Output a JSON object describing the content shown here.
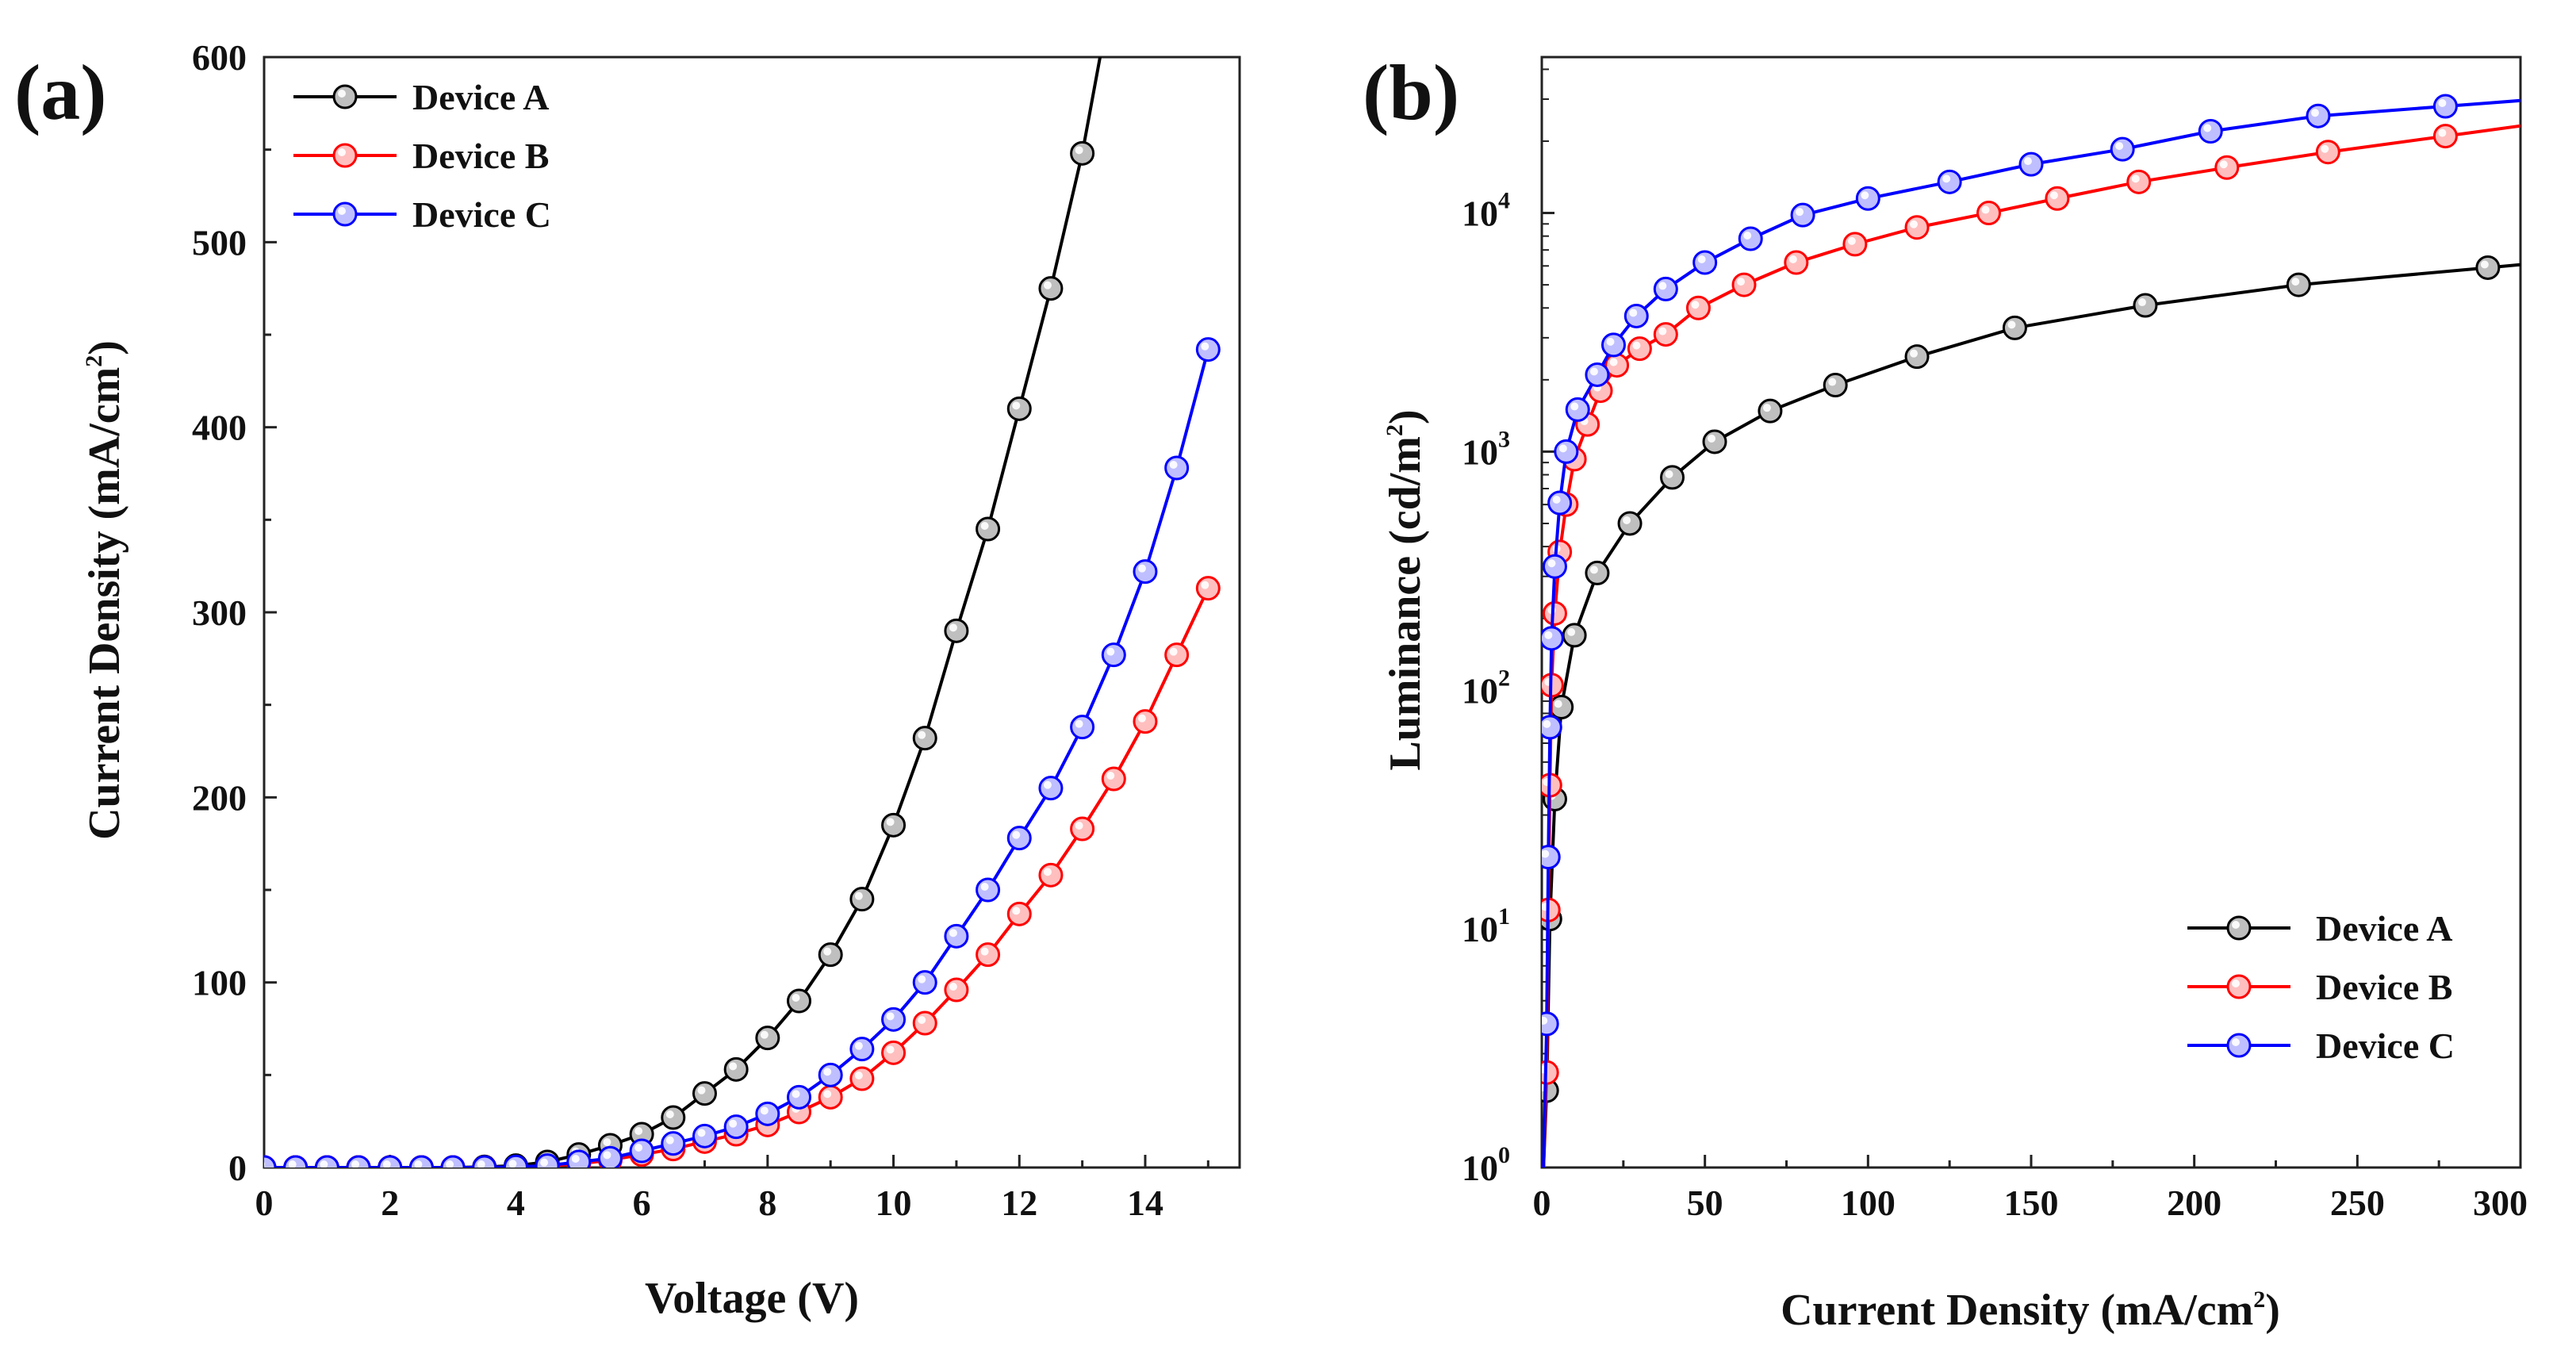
{
  "chart_data": [
    {
      "panel_label": "(a)",
      "type": "line",
      "xlabel": "Voltage (V)",
      "ylabel_main": "Current Density (mA/cm",
      "ylabel_exp": "2",
      "ylabel_tail": ")",
      "xlim": [
        0,
        15.5
      ],
      "ylim": [
        0,
        600
      ],
      "x_ticks": [
        0,
        2,
        4,
        6,
        8,
        10,
        12,
        14
      ],
      "y_ticks": [
        0,
        100,
        200,
        300,
        400,
        500,
        600
      ],
      "legend_position": "top-left",
      "x": [
        0,
        0.5,
        1,
        1.5,
        2,
        2.5,
        3,
        3.5,
        4,
        4.5,
        5,
        5.5,
        6,
        6.5,
        7,
        7.5,
        8,
        8.5,
        9,
        9.5,
        10,
        10.5,
        11,
        11.5,
        12,
        12.5,
        13,
        13.5,
        14,
        14.5,
        15
      ],
      "series": [
        {
          "name": "Device A",
          "color": "#000000",
          "values": [
            0,
            0,
            0,
            0,
            0,
            0,
            0,
            0.3,
            1,
            3,
            7,
            12,
            18,
            27,
            40,
            53,
            70,
            90,
            115,
            145,
            185,
            232,
            290,
            345,
            410,
            475,
            548,
            640,
            null,
            null,
            null
          ]
        },
        {
          "name": "Device B",
          "color": "#ff0000",
          "values": [
            0,
            0,
            0,
            0,
            0,
            0,
            0,
            0,
            0.2,
            0.8,
            2,
            4,
            7,
            10,
            14,
            18,
            23,
            30,
            38,
            48,
            62,
            78,
            96,
            115,
            137,
            158,
            183,
            210,
            241,
            277,
            313
          ]
        },
        {
          "name": "Device C",
          "color": "#0000ff",
          "values": [
            0,
            0,
            0,
            0,
            0,
            0,
            0,
            0,
            0.3,
            1,
            3,
            5,
            9,
            13,
            17,
            22,
            29,
            38,
            50,
            64,
            80,
            100,
            125,
            150,
            178,
            205,
            238,
            277,
            322,
            378,
            442
          ]
        }
      ]
    },
    {
      "panel_label": "(b)",
      "type": "line",
      "xlabel_main": "Current Density (mA/cm",
      "xlabel_exp": "2",
      "xlabel_tail": ")",
      "ylabel_main": "Luminance (cd/m",
      "ylabel_exp": "2",
      "ylabel_tail": ")",
      "xlim": [
        0,
        300
      ],
      "ylim": [
        1,
        45000
      ],
      "y_scale": "log",
      "x_ticks": [
        0,
        50,
        100,
        150,
        200,
        250
      ],
      "x_tick_last": "300",
      "y_ticks": [
        {
          "value": 1,
          "base": "10",
          "exp": "0"
        },
        {
          "value": 10,
          "base": "10",
          "exp": "1"
        },
        {
          "value": 100,
          "base": "10",
          "exp": "2"
        },
        {
          "value": 1000,
          "base": "10",
          "exp": "3"
        },
        {
          "value": 10000,
          "base": "10",
          "exp": "4"
        }
      ],
      "legend_position": "bottom-right",
      "series": [
        {
          "name": "Device A",
          "color": "#000000",
          "x": [
            1.5,
            2.5,
            4,
            6,
            10,
            17,
            27,
            40,
            53,
            70,
            90,
            115,
            145,
            185,
            232,
            290
          ],
          "y": [
            2.1,
            11,
            35,
            85,
            170,
            310,
            500,
            780,
            1100,
            1480,
            1900,
            2500,
            3300,
            4100,
            5000,
            5900
          ]
        },
        {
          "name": "Device B",
          "color": "#ff0000",
          "x": [
            1.5,
            2,
            2.5,
            3,
            4,
            5.5,
            7.5,
            10,
            14,
            18,
            23,
            30,
            38,
            48,
            62,
            78,
            96,
            115,
            137,
            158,
            183,
            210,
            241,
            277
          ],
          "y": [
            2.5,
            12,
            40,
            105,
            210,
            380,
            600,
            930,
            1300,
            1800,
            2300,
            2700,
            3100,
            4000,
            5000,
            6200,
            7400,
            8700,
            10000,
            11500,
            13500,
            15500,
            18000,
            21000
          ]
        },
        {
          "name": "Device C",
          "color": "#0000ff",
          "x": [
            1.5,
            2,
            2.5,
            3,
            4,
            5.5,
            7.5,
            11,
            17,
            22,
            29,
            38,
            50,
            64,
            80,
            100,
            125,
            150,
            178,
            205,
            238,
            277
          ],
          "y": [
            4,
            20,
            70,
            165,
            330,
            610,
            1000,
            1500,
            2100,
            2800,
            3700,
            4800,
            6200,
            7800,
            9800,
            11500,
            13500,
            16000,
            18500,
            22000,
            25500,
            28000
          ]
        }
      ]
    }
  ]
}
